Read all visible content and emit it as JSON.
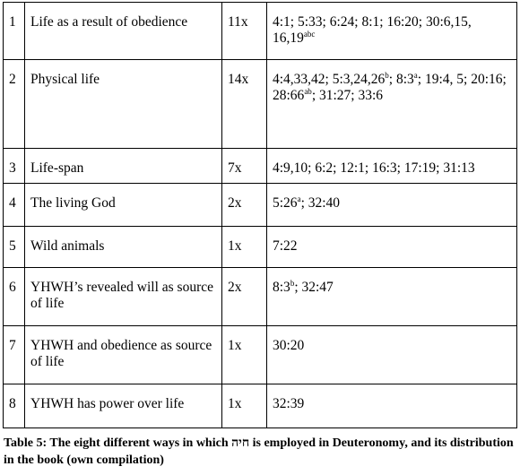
{
  "table": {
    "rows": [
      {
        "num": "1",
        "category": "Life as a result of obedience",
        "count": "11x",
        "refs": [
          {
            "t": "4:1; 5:33; 6:24; 8:1; 16:20; 30:6,15, 16,19"
          },
          {
            "t": "abc",
            "sup": true
          }
        ]
      },
      {
        "num": "2",
        "category": "Physical life",
        "count": "14x",
        "refs": [
          {
            "t": "4:4,33,42; 5:3,24,26"
          },
          {
            "t": "b",
            "sup": true
          },
          {
            "t": "; 8:3"
          },
          {
            "t": "a",
            "sup": true
          },
          {
            "t": "; 19:4, 5; 20:16; 28:66"
          },
          {
            "t": "ab",
            "sup": true
          },
          {
            "t": "; 31:27; 33:6"
          }
        ]
      },
      {
        "num": "3",
        "category": "Life-span",
        "count": "7x",
        "refs": [
          {
            "t": "4:9,10; 6:2; 12:1; 16:3; 17:19; 31:13"
          }
        ]
      },
      {
        "num": "4",
        "category": "The living God",
        "count": "2x",
        "refs": [
          {
            "t": "5:26"
          },
          {
            "t": "a",
            "sup": true
          },
          {
            "t": "; 32:40"
          }
        ]
      },
      {
        "num": "5",
        "category": "Wild animals",
        "count": "1x",
        "refs": [
          {
            "t": "7:22"
          }
        ]
      },
      {
        "num": "6",
        "category": "YHWH’s revealed will as source of life",
        "count": "2x",
        "refs": [
          {
            "t": "8:3"
          },
          {
            "t": "b",
            "sup": true
          },
          {
            "t": "; 32:47"
          }
        ]
      },
      {
        "num": "7",
        "category": "YHWH and obedience as source of life",
        "count": "1x",
        "refs": [
          {
            "t": "30:20"
          }
        ]
      },
      {
        "num": "8",
        "category": "YHWH has power over life",
        "count": "1x",
        "refs": [
          {
            "t": "32:39"
          }
        ]
      }
    ]
  },
  "caption": {
    "before_hebrew": "Table 5: The eight different ways in which ",
    "hebrew": "חיה",
    "after_hebrew": " is employed in Deuteronomy, and its distribution in the book (own compilation)"
  }
}
